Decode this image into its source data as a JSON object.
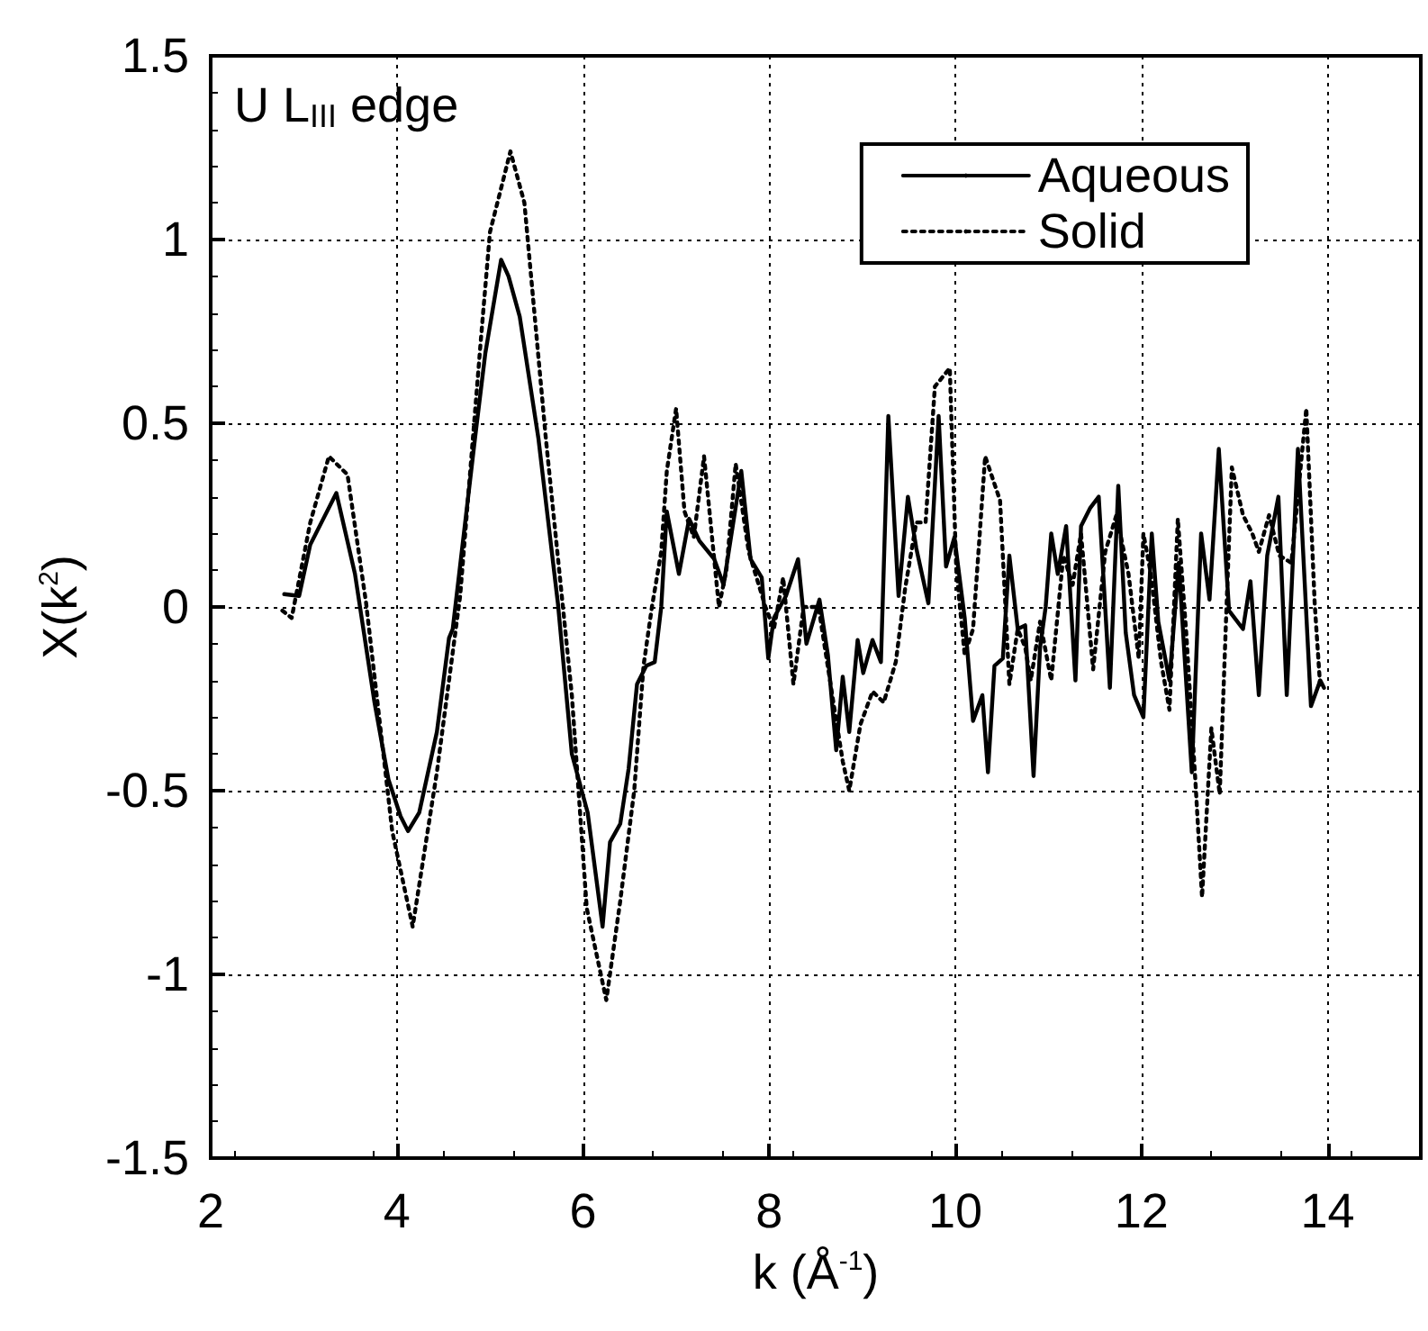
{
  "chart_data": {
    "type": "line",
    "xlabel": "k (Å$^{-1}$)",
    "ylabel": "X(k$^{2}$)",
    "annotations": [
      "U L$_{III}$ edge"
    ],
    "xlim": [
      2,
      15
    ],
    "xticks": [
      2,
      4,
      6,
      8,
      10,
      12,
      14
    ],
    "ylim": [
      -1.5,
      1.5
    ],
    "yticks": [
      -1.5,
      -1,
      -0.5,
      0,
      0.5,
      1,
      1.5
    ],
    "grid": true,
    "legend": "top right",
    "marker": "none",
    "series": [
      {
        "name": "Aqueous",
        "color": "#000000",
        "line_style": "solid",
        "x": [
          2.79,
          2.95,
          3.07,
          3.2,
          3.35,
          3.55,
          3.76,
          3.91,
          4.04,
          4.12,
          4.24,
          4.43,
          4.56,
          4.6,
          4.84,
          4.95,
          5.12,
          5.2,
          5.32,
          5.52,
          5.73,
          5.88,
          6.05,
          6.21,
          6.29,
          6.4,
          6.49,
          6.58,
          6.68,
          6.77,
          6.84,
          6.9,
          7.03,
          7.14,
          7.25,
          7.41,
          7.51,
          7.7,
          7.8,
          7.92,
          7.99,
          8.05,
          8.18,
          8.31,
          8.4,
          8.54,
          8.63,
          8.72,
          8.79,
          8.86,
          8.95,
          9.01,
          9.11,
          9.2,
          9.28,
          9.39,
          9.49,
          9.58,
          9.71,
          9.82,
          9.9,
          9.99,
          10.1,
          10.19,
          10.29,
          10.35,
          10.42,
          10.51,
          10.58,
          10.67,
          10.75,
          10.84,
          10.91,
          10.97,
          11.03,
          11.1,
          11.19,
          11.29,
          11.35,
          11.45,
          11.54,
          11.66,
          11.75,
          11.83,
          11.92,
          12.02,
          12.11,
          12.18,
          12.3,
          12.4,
          12.54,
          12.64,
          12.73,
          12.83,
          12.94,
          13.09,
          13.17,
          13.26,
          13.35,
          13.47,
          13.56,
          13.68,
          13.82,
          13.92,
          13.96
        ],
        "values": [
          0.035,
          0.03,
          0.17,
          0.235,
          0.31,
          0.09,
          -0.26,
          -0.47,
          -0.57,
          -0.61,
          -0.56,
          -0.34,
          -0.085,
          -0.06,
          0.46,
          0.69,
          0.945,
          0.9,
          0.79,
          0.46,
          0.01,
          -0.4,
          -0.56,
          -0.87,
          -0.64,
          -0.59,
          -0.44,
          -0.21,
          -0.16,
          -0.15,
          0,
          0.26,
          0.09,
          0.24,
          0.18,
          0.13,
          0.06,
          0.37,
          0.13,
          0.08,
          -0.14,
          -0.03,
          0.03,
          0.13,
          -0.1,
          0.02,
          -0.13,
          -0.39,
          -0.19,
          -0.34,
          -0.09,
          -0.18,
          -0.09,
          -0.15,
          0.52,
          0.03,
          0.3,
          0.16,
          0.01,
          0.52,
          0.11,
          0.19,
          -0.03,
          -0.31,
          -0.24,
          -0.45,
          -0.16,
          -0.14,
          0.14,
          -0.06,
          -0.05,
          -0.46,
          -0.11,
          0,
          0.2,
          0.09,
          0.22,
          -0.2,
          0.22,
          0.27,
          0.3,
          -0.22,
          0.33,
          -0.07,
          -0.24,
          -0.3,
          0.2,
          -0.04,
          -0.2,
          0.12,
          -0.45,
          0.2,
          0.02,
          0.43,
          -0.01,
          -0.06,
          0.07,
          -0.24,
          0.14,
          0.3,
          -0.24,
          0.43,
          -0.27,
          -0.2,
          -0.22
        ]
      },
      {
        "name": "Solid",
        "color": "#000000",
        "line_style": "dotted",
        "x": [
          2.77,
          2.87,
          3.07,
          3.27,
          3.47,
          3.67,
          3.95,
          4.17,
          4.43,
          4.68,
          4.9,
          5.0,
          5.22,
          5.37,
          5.6,
          5.88,
          6.04,
          6.25,
          6.4,
          6.55,
          6.65,
          6.74,
          6.84,
          6.9,
          7.0,
          7.09,
          7.19,
          7.3,
          7.46,
          7.54,
          7.64,
          7.78,
          7.96,
          8.05,
          8.15,
          8.26,
          8.37,
          8.53,
          8.69,
          8.79,
          8.86,
          8.98,
          9.11,
          9.23,
          9.36,
          9.46,
          9.58,
          9.68,
          9.78,
          9.94,
          10.01,
          10.1,
          10.19,
          10.32,
          10.48,
          10.58,
          10.67,
          10.75,
          10.81,
          10.91,
          11.03,
          11.16,
          11.26,
          11.35,
          11.48,
          11.61,
          11.73,
          11.86,
          11.97,
          12.02,
          12.1,
          12.21,
          12.3,
          12.39,
          12.48,
          12.58,
          12.65,
          12.75,
          12.84,
          12.91,
          12.97,
          13.09,
          13.19,
          13.26,
          13.37,
          13.48,
          13.61,
          13.69,
          13.77,
          13.86,
          13.92
        ],
        "values": [
          -0.01,
          -0.03,
          0.23,
          0.41,
          0.36,
          0.01,
          -0.61,
          -0.87,
          -0.45,
          0.03,
          0.72,
          1.02,
          1.24,
          1.1,
          0.46,
          -0.24,
          -0.82,
          -1.07,
          -0.8,
          -0.5,
          -0.16,
          0,
          0.15,
          0.37,
          0.54,
          0.26,
          0.19,
          0.41,
          0,
          0.1,
          0.39,
          0.15,
          0,
          -0.06,
          0.08,
          -0.21,
          0,
          0,
          -0.26,
          -0.42,
          -0.5,
          -0.32,
          -0.23,
          -0.26,
          -0.15,
          0.05,
          0.23,
          0.23,
          0.6,
          0.65,
          0.1,
          -0.13,
          -0.06,
          0.41,
          0.29,
          -0.21,
          -0.06,
          -0.11,
          -0.2,
          -0.04,
          -0.2,
          0.14,
          0.06,
          0.2,
          -0.17,
          0.15,
          0.25,
          0.09,
          -0.14,
          0.2,
          0.09,
          -0.15,
          -0.28,
          0.24,
          -0.07,
          -0.48,
          -0.79,
          -0.33,
          -0.51,
          -0.02,
          0.38,
          0.25,
          0.2,
          0.15,
          0.25,
          0.14,
          0.12,
          0.33,
          0.54,
          0.01,
          -0.22
        ]
      }
    ]
  }
}
